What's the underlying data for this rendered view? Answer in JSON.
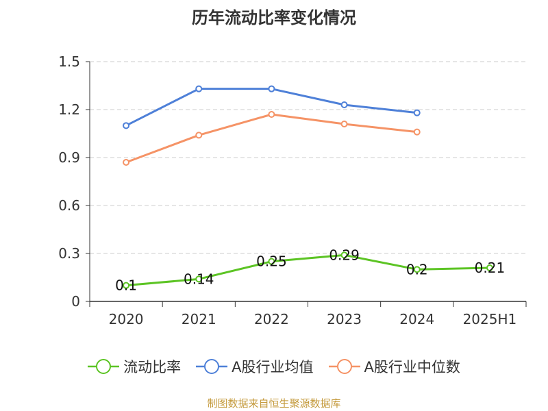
{
  "chart_data": {
    "type": "line",
    "title": "历年流动比率变化情况",
    "categories": [
      "2020",
      "2021",
      "2022",
      "2023",
      "2024",
      "2025H1"
    ],
    "ylim": [
      0,
      1.5
    ],
    "yticks": [
      "0",
      "0.3",
      "0.6",
      "0.9",
      "1.2",
      "1.5"
    ],
    "ytick_values": [
      0,
      0.3,
      0.6,
      0.9,
      1.2,
      1.5
    ],
    "grid": true,
    "legend_position": "bottom-center",
    "series": [
      {
        "name": "流动比率",
        "color": "#5cc424",
        "values": [
          0.1,
          0.14,
          0.25,
          0.29,
          0.2,
          0.21
        ],
        "labels": [
          "0.1",
          "0.14",
          "0.25",
          "0.29",
          "0.2",
          "0.21"
        ]
      },
      {
        "name": "A股行业均值",
        "color": "#4e80d8",
        "values": [
          1.1,
          1.33,
          1.33,
          1.23,
          1.18,
          null
        ]
      },
      {
        "name": "A股行业中位数",
        "color": "#f59366",
        "values": [
          0.87,
          1.04,
          1.17,
          1.11,
          1.06,
          null
        ]
      }
    ]
  },
  "source_note": "制图数据来自恒生聚源数据库"
}
